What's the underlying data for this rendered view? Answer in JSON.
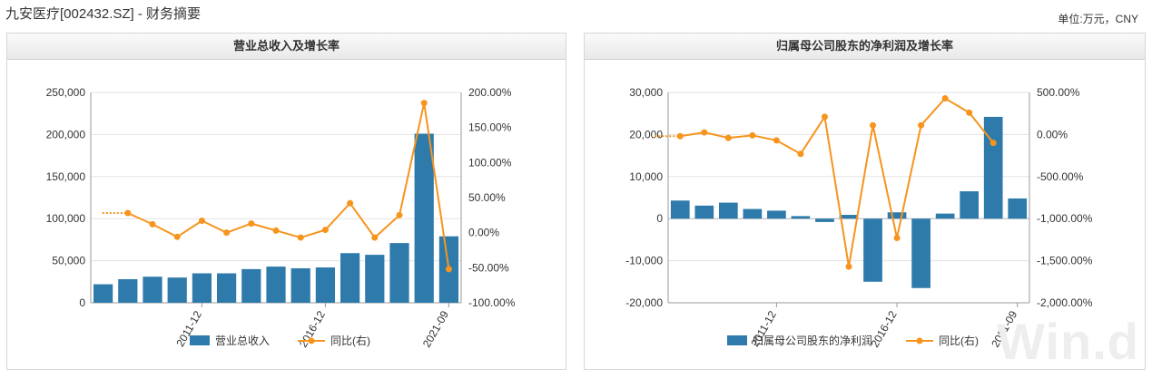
{
  "page": {
    "title": "九安医疗[002432.SZ] - 财务摘要",
    "unit": "单位:万元，CNY",
    "watermark": "Win.d"
  },
  "colors": {
    "bar": "#2e7bab",
    "line": "#f7941d",
    "grid": "#e3e3e3"
  },
  "chart_data": [
    {
      "type": "bar",
      "title": "营业总收入及增长率",
      "x_tick_labels": [
        "2011-12",
        "2016-12",
        "2021-09"
      ],
      "x_tick_indices": [
        4,
        9,
        14
      ],
      "y_left": {
        "ticks": [
          "0",
          "50,000",
          "100,000",
          "150,000",
          "200,000",
          "250,000"
        ],
        "range": [
          0,
          250000
        ]
      },
      "y_right": {
        "ticks": [
          "-100.00%",
          "-50.00%",
          "0.00%",
          "50.00%",
          "100.00%",
          "150.00%",
          "200.00%"
        ],
        "range": [
          -100,
          200
        ]
      },
      "series": [
        {
          "name": "营业总收入",
          "type": "bar",
          "axis": "left",
          "values": [
            22000,
            28000,
            31000,
            30000,
            35000,
            35000,
            40000,
            43000,
            41000,
            42000,
            59000,
            57000,
            71000,
            201000,
            79000
          ]
        },
        {
          "name": "同比(右)",
          "type": "line",
          "axis": "right",
          "values": [
            null,
            28,
            12,
            -6,
            17,
            0,
            13,
            3,
            -7,
            4,
            42,
            -7,
            25,
            185,
            -52
          ],
          "dotted_lead_value": 28
        }
      ],
      "legend": [
        {
          "name": "营业总收入",
          "type": "bar"
        },
        {
          "name": "同比(右)",
          "type": "line"
        }
      ],
      "legend_position": "bottom",
      "grid": true
    },
    {
      "type": "bar",
      "title": "归属母公司股东的净利润及增长率",
      "x_tick_labels": [
        "2011-12",
        "2016-12",
        "2021-09"
      ],
      "x_tick_indices": [
        4,
        9,
        14
      ],
      "y_left": {
        "ticks": [
          "-20,000",
          "-10,000",
          "0",
          "10,000",
          "20,000",
          "30,000"
        ],
        "range": [
          -20000,
          30000
        ]
      },
      "y_right": {
        "ticks": [
          "-2,000.00%",
          "-1,500.00%",
          "-1,000.00%",
          "-500.00%",
          "0.00%",
          "500.00%"
        ],
        "range": [
          -2000,
          500
        ]
      },
      "series": [
        {
          "name": "归属母公司股东的净利润",
          "type": "bar",
          "axis": "left",
          "values": [
            4300,
            3100,
            3800,
            2300,
            1900,
            600,
            -800,
            900,
            -15000,
            1500,
            -16500,
            1200,
            6500,
            24200,
            4800
          ]
        },
        {
          "name": "同比(右)",
          "type": "line",
          "axis": "right",
          "values": [
            -20,
            25,
            -40,
            -10,
            -70,
            -230,
            210,
            -1570,
            110,
            -1230,
            110,
            430,
            260,
            -100,
            null
          ],
          "dotted_lead_value": -20
        }
      ],
      "legend": [
        {
          "name": "归属母公司股东的净利润",
          "type": "bar"
        },
        {
          "name": "同比(右)",
          "type": "line"
        }
      ],
      "legend_position": "bottom",
      "grid": true
    }
  ]
}
